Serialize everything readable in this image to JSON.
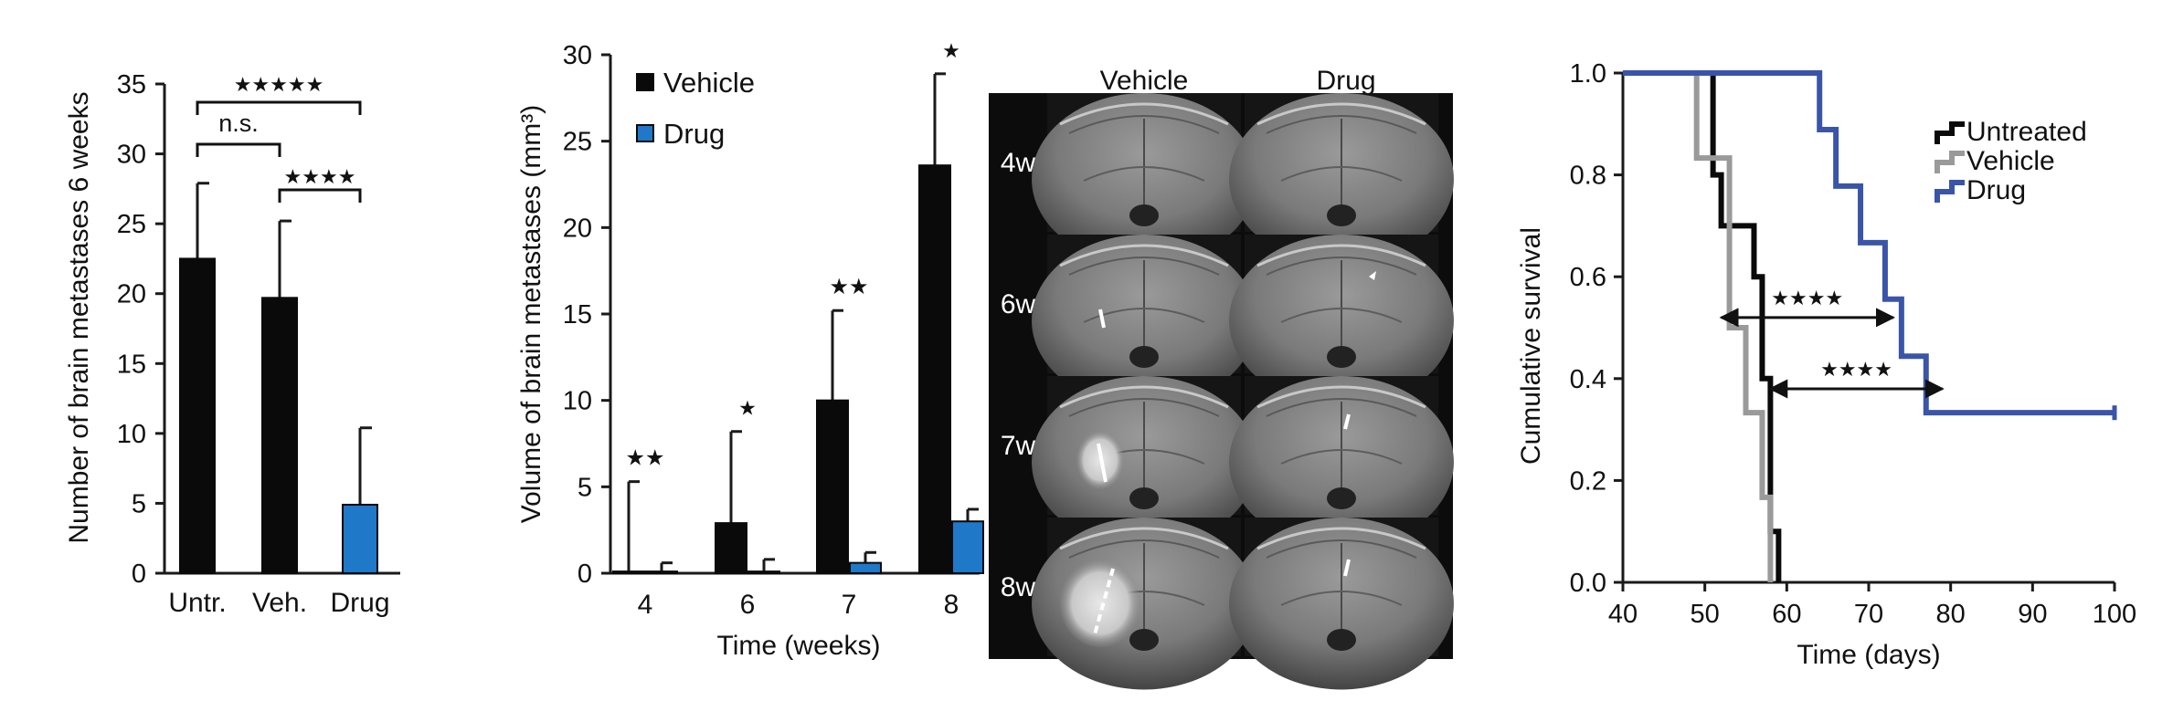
{
  "chart_data": [
    {
      "type": "bar",
      "panel": "a",
      "categories": [
        "Untr.",
        "Veh.",
        "Drug"
      ],
      "values": [
        22.5,
        19.7,
        4.9
      ],
      "errors": [
        5.4,
        5.5,
        5.5
      ],
      "colors": [
        "#0a0a0a",
        "#0a0a0a",
        "#1f78c8"
      ],
      "ylabel": "Number of brain metastases 6 weeks",
      "xlabel": "",
      "ylim": [
        0,
        35
      ],
      "yticks": [
        "0",
        "5",
        "10",
        "15",
        "20",
        "25",
        "30",
        "35"
      ],
      "grid": false,
      "significance": [
        {
          "from": 0,
          "to": 1,
          "label": "n.s."
        },
        {
          "from": 1,
          "to": 2,
          "label": "★★★★"
        },
        {
          "from": 0,
          "to": 2,
          "label": "★★★★★"
        }
      ]
    },
    {
      "type": "bar",
      "panel": "b",
      "categories": [
        "4",
        "6",
        "7",
        "8"
      ],
      "series": [
        {
          "name": "Vehicle",
          "color": "#0a0a0a",
          "values": [
            0.1,
            2.9,
            10.0,
            23.6
          ],
          "errors": [
            5.2,
            5.3,
            5.2,
            5.3
          ]
        },
        {
          "name": "Drug",
          "color": "#1f78c8",
          "values": [
            0.1,
            0.1,
            0.6,
            3.0
          ],
          "errors": [
            0.5,
            0.7,
            0.6,
            0.7
          ]
        }
      ],
      "xlabel": "Time (weeks)",
      "ylabel": "Volume of brain metastases (mm³)",
      "ylim": [
        0,
        30
      ],
      "yticks": [
        "0",
        "5",
        "10",
        "15",
        "20",
        "25",
        "30"
      ],
      "legend": "top-left",
      "grid": false,
      "significance": [
        "★★",
        "★",
        "★★",
        "★"
      ]
    },
    {
      "type": "line",
      "panel": "d",
      "step": true,
      "xlabel": "Time (days)",
      "ylabel": "Cumulative survival",
      "xlim": [
        40,
        100
      ],
      "ylim": [
        0,
        1
      ],
      "xticks": [
        "40",
        "50",
        "60",
        "70",
        "80",
        "90",
        "100"
      ],
      "yticks": [
        "0.0",
        "0.2",
        "0.4",
        "0.6",
        "0.8",
        "1.0"
      ],
      "legend": "top-right",
      "grid": false,
      "series": [
        {
          "name": "Untreated",
          "color": "#0a0a0a",
          "x": [
            40,
            51,
            52,
            56,
            57,
            58,
            59
          ],
          "y": [
            1.0,
            0.8,
            0.7,
            0.6,
            0.4,
            0.1,
            0.0
          ]
        },
        {
          "name": "Vehicle",
          "color": "#9a9a9a",
          "x": [
            40,
            49,
            51,
            53,
            55,
            57,
            58
          ],
          "y": [
            1.0,
            0.833,
            0.833,
            0.5,
            0.333,
            0.167,
            0.0
          ]
        },
        {
          "name": "Drug",
          "color": "#3a55a8",
          "x": [
            40,
            64,
            66,
            69,
            72,
            74,
            77,
            100
          ],
          "y": [
            1.0,
            0.889,
            0.778,
            0.667,
            0.556,
            0.444,
            0.333,
            0.333
          ]
        }
      ],
      "annotations": [
        {
          "label": "★★★★",
          "x1": 52,
          "x2": 73,
          "y": 0.52
        },
        {
          "label": "★★★★",
          "x1": 58,
          "x2": 79,
          "y": 0.38
        }
      ]
    }
  ],
  "mri": {
    "columns": [
      "Vehicle",
      "Drug"
    ],
    "rows": [
      "4w",
      "6w",
      "7w",
      "8w"
    ]
  }
}
